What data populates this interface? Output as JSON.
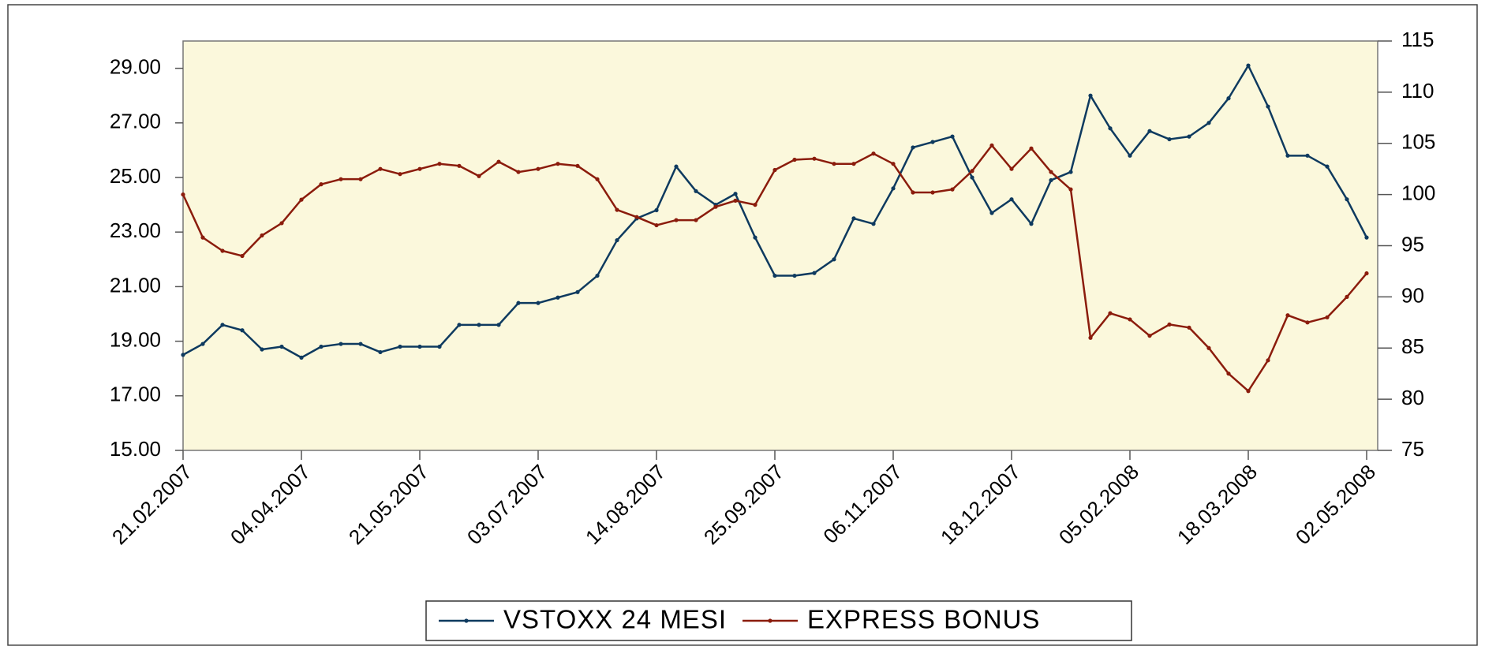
{
  "chart_data": {
    "type": "line",
    "categories": [
      "21.02.2007",
      null,
      null,
      null,
      null,
      null,
      "04.04.2007",
      null,
      null,
      null,
      null,
      null,
      "21.05.2007",
      null,
      null,
      null,
      null,
      null,
      "03.07.2007",
      null,
      null,
      null,
      null,
      null,
      "14.08.2007",
      null,
      null,
      null,
      null,
      null,
      "25.09.2007",
      null,
      null,
      null,
      null,
      null,
      "06.11.2007",
      null,
      null,
      null,
      null,
      null,
      "18.12.2007",
      null,
      null,
      null,
      null,
      null,
      "05.02.2008",
      null,
      null,
      null,
      null,
      null,
      "18.03.2008",
      null,
      null,
      null,
      null,
      null,
      "02.05.2008"
    ],
    "series": [
      {
        "name": "VSTOXX 24 MESI",
        "color": "#0e3a5f",
        "values": [
          18.5,
          18.9,
          19.6,
          19.4,
          18.7,
          18.8,
          18.4,
          18.8,
          18.9,
          18.9,
          18.6,
          18.8,
          18.8,
          18.8,
          19.6,
          19.6,
          19.6,
          20.4,
          20.4,
          20.6,
          20.8,
          21.4,
          22.7,
          23.5,
          23.8,
          25.4,
          24.5,
          24.0,
          24.4,
          22.8,
          21.4,
          21.4,
          21.5,
          22.0,
          23.5,
          23.3,
          24.6,
          26.1,
          26.3,
          26.5,
          25.0,
          23.7,
          24.2,
          23.3,
          24.9,
          25.2,
          28.0,
          26.8,
          25.8,
          26.7,
          26.4,
          26.5,
          27.0,
          27.9,
          29.1,
          27.6,
          25.8,
          25.8,
          25.4,
          24.2,
          22.8
        ]
      },
      {
        "name": "EXPRESS BONUS",
        "color": "#8b1c0c",
        "axis": "y2",
        "values": [
          100.0,
          95.8,
          94.5,
          94.0,
          96.0,
          97.2,
          99.5,
          101.0,
          101.5,
          101.5,
          102.5,
          102.0,
          102.5,
          103.0,
          102.8,
          101.8,
          103.2,
          102.2,
          102.5,
          103.0,
          102.8,
          101.5,
          98.5,
          97.8,
          97.0,
          97.5,
          97.5,
          98.8,
          99.4,
          99.0,
          102.4,
          103.4,
          103.5,
          103.0,
          103.0,
          104.0,
          103.0,
          100.2,
          100.2,
          100.5,
          102.3,
          104.8,
          102.5,
          104.5,
          102.2,
          100.5,
          86.0,
          88.4,
          87.8,
          86.2,
          87.3,
          87.0,
          85.0,
          82.5,
          80.8,
          83.8,
          88.2,
          87.5,
          88.0,
          90.0,
          92.3
        ]
      }
    ],
    "ylim": [
      15,
      30
    ],
    "yticks": [
      {
        "value": 15,
        "label": "15.00"
      },
      {
        "value": 17,
        "label": "17.00"
      },
      {
        "value": 19,
        "label": "19.00"
      },
      {
        "value": 21,
        "label": "21.00"
      },
      {
        "value": 23,
        "label": "23.00"
      },
      {
        "value": 25,
        "label": "25.00"
      },
      {
        "value": 27,
        "label": "27.00"
      },
      {
        "value": 29,
        "label": "29.00"
      }
    ],
    "y2lim": [
      75,
      115
    ],
    "y2ticks": [
      75,
      80,
      85,
      90,
      95,
      100,
      105,
      110,
      115
    ],
    "grid": false,
    "legend": "bottom",
    "plot_background": "#fbf8dc"
  }
}
